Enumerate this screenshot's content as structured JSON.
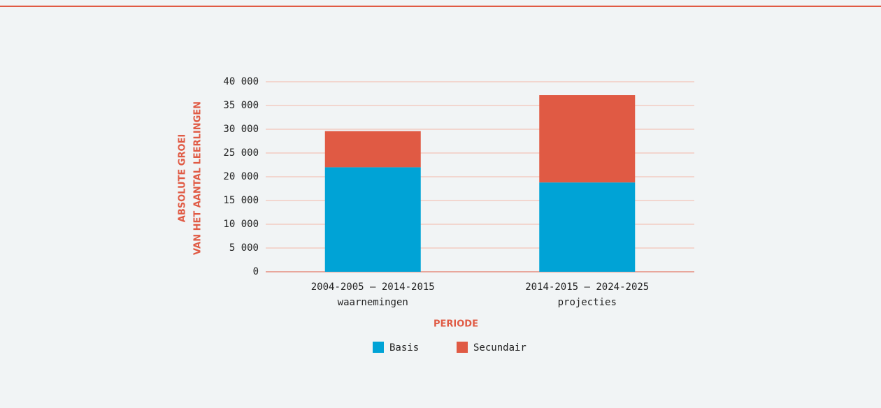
{
  "chart_data": {
    "type": "bar",
    "stacked": true,
    "categories": [
      [
        "2004-2005 – 2014-2015",
        "waarnemingen"
      ],
      [
        "2014-2015 – 2024-2025",
        "projecties"
      ]
    ],
    "series": [
      {
        "name": "Basis",
        "color": "#00a3d6",
        "values": [
          22000,
          18800
        ]
      },
      {
        "name": "Secundair",
        "color": "#e05a44",
        "values": [
          7600,
          18400
        ]
      }
    ],
    "ylabel": [
      "ABSOLUTE GROEI",
      "VAN HET AANTAL LEERLINGEN"
    ],
    "xlabel": "PERIODE",
    "ylim": [
      0,
      40000
    ],
    "yticks": [
      0,
      {
        "value": 5000,
        "label": "5 000"
      },
      {
        "value": 10000,
        "label": "10 000"
      },
      {
        "value": 15000,
        "label": "15 000"
      },
      {
        "value": 20000,
        "label": "20 000"
      },
      {
        "value": 25000,
        "label": "25 000"
      },
      {
        "value": 30000,
        "label": "30 000"
      },
      {
        "value": 35000,
        "label": "35 000"
      },
      {
        "value": 40000,
        "label": "40 000"
      }
    ],
    "grid": true,
    "legend": "bottom"
  }
}
